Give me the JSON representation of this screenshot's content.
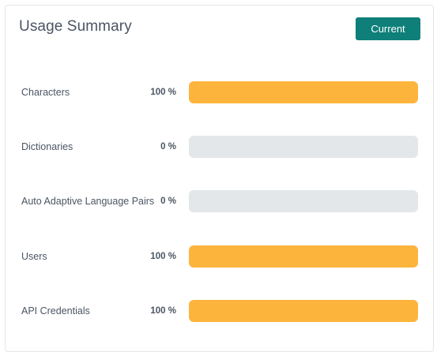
{
  "header": {
    "title": "Usage Summary",
    "button_label": "Current"
  },
  "colors": {
    "accent": "#0f7f79",
    "bar_fill": "#fdb43c",
    "bar_track": "#e3e7ea"
  },
  "usage": [
    {
      "label": "Characters",
      "percent_text": "100 %",
      "percent": 100
    },
    {
      "label": "Dictionaries",
      "percent_text": "0 %",
      "percent": 0
    },
    {
      "label": "Auto Adaptive Language Pairs",
      "percent_text": "0 %",
      "percent": 0
    },
    {
      "label": "Users",
      "percent_text": "100 %",
      "percent": 100
    },
    {
      "label": "API Credentials",
      "percent_text": "100 %",
      "percent": 100
    }
  ]
}
